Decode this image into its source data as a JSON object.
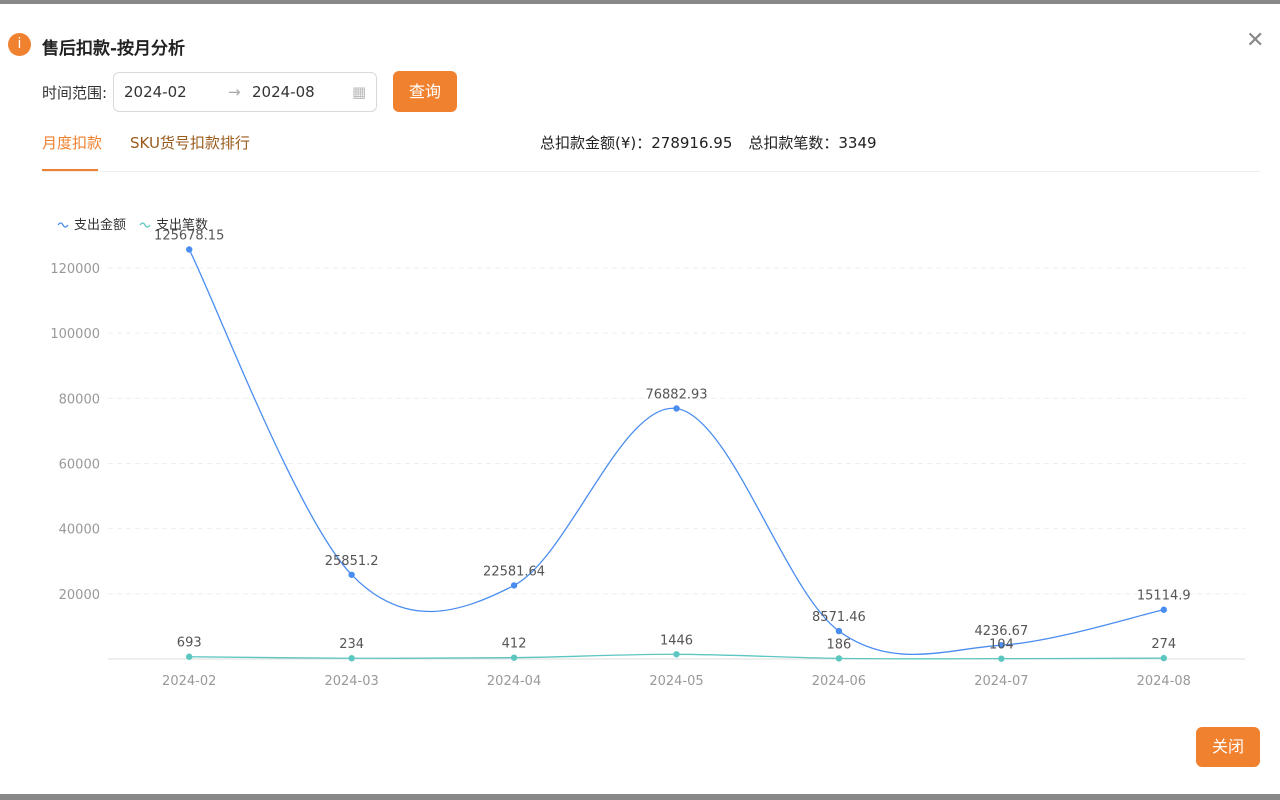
{
  "dialog": {
    "title": "售后扣款-按月分析",
    "range_label": "时间范围:",
    "start": "2024-02",
    "end": "2024-08",
    "query": "查询",
    "tabs": [
      "月度扣款",
      "SKU货号扣款排行"
    ],
    "summary": {
      "amount_label": "总扣款金额(¥)：",
      "amount": 278916.95,
      "count_label": "总扣款笔数：",
      "count": 3349
    },
    "close": "关闭"
  },
  "chart_data": {
    "type": "line",
    "categories": [
      "2024-02",
      "2024-03",
      "2024-04",
      "2024-05",
      "2024-06",
      "2024-07",
      "2024-08"
    ],
    "series": [
      {
        "name": "支出金额",
        "color": "#4a8df0",
        "values": [
          125678.15,
          25851.2,
          22581.64,
          76882.93,
          8571.46,
          4236.67,
          15114.9
        ]
      },
      {
        "name": "支出笔数",
        "color": "#5cc6c0",
        "values": [
          693,
          234,
          412,
          1446,
          186,
          104,
          274
        ]
      }
    ],
    "ylim": [
      0,
      130000
    ],
    "yticks": [
      20000,
      40000,
      60000,
      80000,
      100000,
      120000
    ],
    "grid": true,
    "legend": "top-left"
  }
}
